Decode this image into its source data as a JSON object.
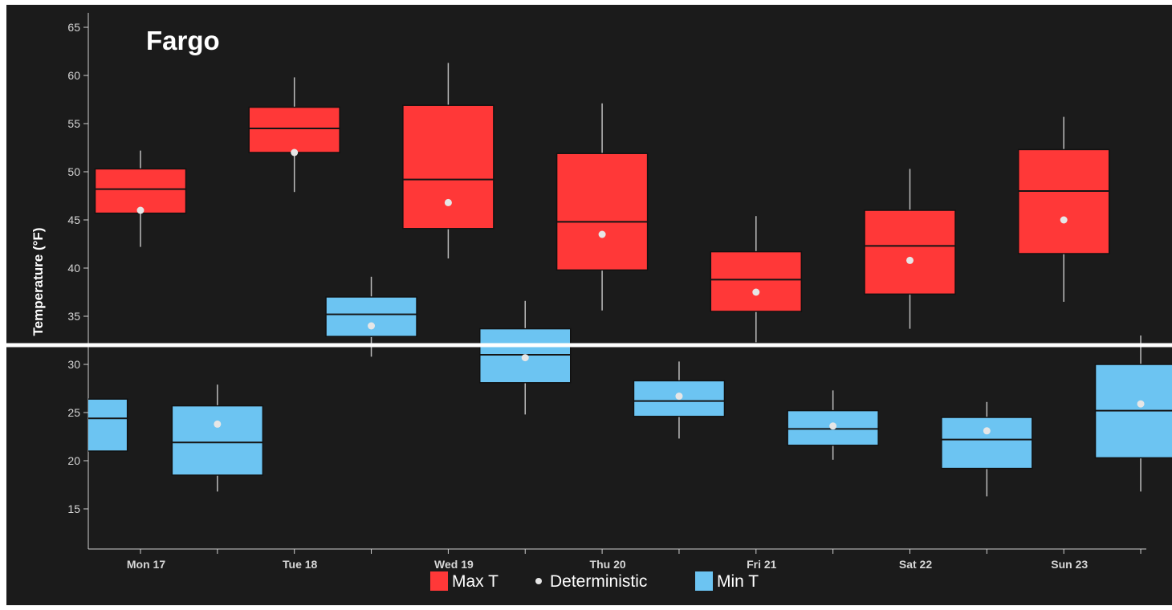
{
  "chart_data": {
    "type": "box",
    "title": "Fargo",
    "ylabel": "Temperature (°F)",
    "ylim": [
      11,
      66
    ],
    "yticks": [
      15,
      20,
      25,
      30,
      35,
      40,
      45,
      50,
      55,
      60,
      65
    ],
    "categories": [
      "Mon 17",
      "Tue 18",
      "Wed 19",
      "Thu 20",
      "Fri 21",
      "Sat 22",
      "Sun 23"
    ],
    "reference_line": 32,
    "colors": {
      "max": "#ff3838",
      "min": "#6cc4f2",
      "deterministic": "#e6e6e6",
      "background": "#1b1b1b",
      "reference": "#ffffff"
    },
    "legend": [
      {
        "label": "Max T",
        "color": "#ff3838",
        "marker": "square"
      },
      {
        "label": "Deterministic",
        "color": "#e6e6e6",
        "marker": "dot"
      },
      {
        "label": "Min T",
        "color": "#6cc4f2",
        "marker": "square"
      }
    ],
    "series": [
      {
        "name": "Max T",
        "boxes": [
          {
            "t": 1.0,
            "whisker_low": 42.2,
            "q1": 45.7,
            "median": 48.2,
            "q3": 50.3,
            "whisker_high": 52.2,
            "deterministic": 46.0
          },
          {
            "t": 2.0,
            "whisker_low": 47.9,
            "q1": 52.0,
            "median": 54.5,
            "q3": 56.7,
            "whisker_high": 59.8,
            "deterministic": 52.0
          },
          {
            "t": 3.0,
            "whisker_low": 41.0,
            "q1": 44.1,
            "median": 49.2,
            "q3": 56.9,
            "whisker_high": 61.3,
            "deterministic": 46.8
          },
          {
            "t": 4.0,
            "whisker_low": 35.6,
            "q1": 39.8,
            "median": 44.8,
            "q3": 51.9,
            "whisker_high": 57.1,
            "deterministic": 43.5
          },
          {
            "t": 5.0,
            "whisker_low": 32.3,
            "q1": 35.5,
            "median": 38.8,
            "q3": 41.7,
            "whisker_high": 45.4,
            "deterministic": 37.5
          },
          {
            "t": 6.0,
            "whisker_low": 33.7,
            "q1": 37.3,
            "median": 42.3,
            "q3": 46.0,
            "whisker_high": 50.3,
            "deterministic": 40.8
          },
          {
            "t": 7.0,
            "whisker_low": 36.5,
            "q1": 41.5,
            "median": 48.0,
            "q3": 52.3,
            "whisker_high": 55.7,
            "deterministic": 45.0
          }
        ]
      },
      {
        "name": "Min T",
        "boxes": [
          {
            "t": 0.62,
            "whisker_low": 21.0,
            "q1": 21.0,
            "median": 24.4,
            "q3": 26.4,
            "whisker_high": 26.4,
            "deterministic": null
          },
          {
            "t": 1.5,
            "whisker_low": 16.8,
            "q1": 18.5,
            "median": 21.9,
            "q3": 25.7,
            "whisker_high": 27.9,
            "deterministic": 23.8
          },
          {
            "t": 2.5,
            "whisker_low": 30.8,
            "q1": 32.9,
            "median": 35.2,
            "q3": 37.0,
            "whisker_high": 39.1,
            "deterministic": 34.0
          },
          {
            "t": 3.5,
            "whisker_low": 24.8,
            "q1": 28.1,
            "median": 31.0,
            "q3": 33.7,
            "whisker_high": 36.6,
            "deterministic": 30.7
          },
          {
            "t": 4.5,
            "whisker_low": 22.3,
            "q1": 24.6,
            "median": 26.2,
            "q3": 28.3,
            "whisker_high": 30.3,
            "deterministic": 26.7
          },
          {
            "t": 5.5,
            "whisker_low": 20.1,
            "q1": 21.6,
            "median": 23.3,
            "q3": 25.2,
            "whisker_high": 27.3,
            "deterministic": 23.6
          },
          {
            "t": 6.5,
            "whisker_low": 16.3,
            "q1": 19.2,
            "median": 22.2,
            "q3": 24.5,
            "whisker_high": 26.1,
            "deterministic": 23.1
          },
          {
            "t": 7.5,
            "whisker_low": 16.8,
            "q1": 20.3,
            "median": 25.2,
            "q3": 30.0,
            "whisker_high": 33.0,
            "deterministic": 25.9
          }
        ]
      }
    ]
  }
}
